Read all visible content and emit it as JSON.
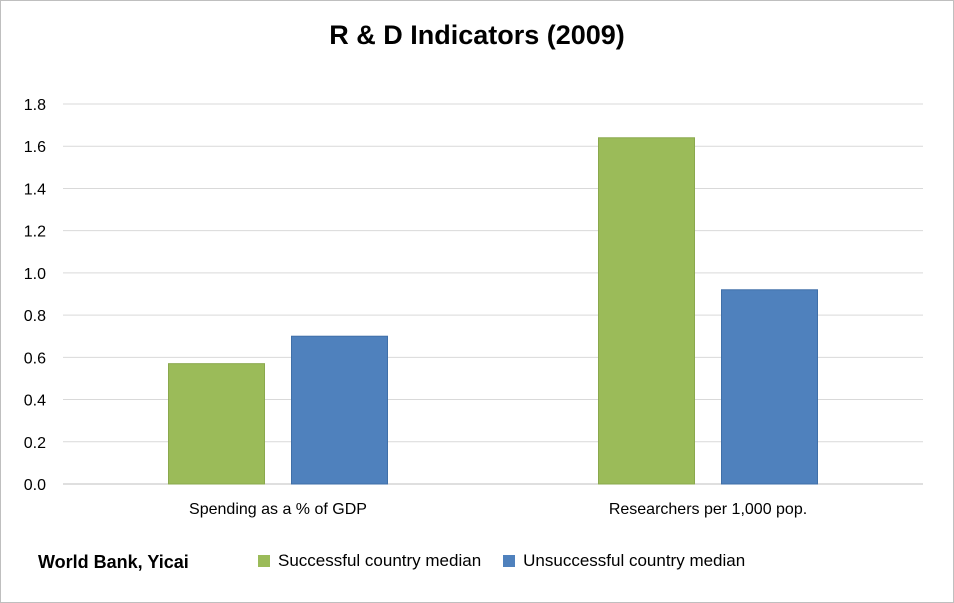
{
  "chart_data": {
    "type": "bar",
    "title": "R & D Indicators (2009)",
    "categories": [
      "Spending as a % of GDP",
      "Researchers per 1,000 pop."
    ],
    "series": [
      {
        "name": "Successful country median",
        "values": [
          0.57,
          1.64
        ],
        "color": "#9bbb59"
      },
      {
        "name": "Unsuccessful country median",
        "values": [
          0.7,
          0.92
        ],
        "color": "#4f81bd"
      }
    ],
    "ylim": [
      0,
      1.8
    ],
    "yticks": [
      "0.0",
      "0.2",
      "0.4",
      "0.6",
      "0.8",
      "1.0",
      "1.2",
      "1.4",
      "1.6",
      "1.8"
    ],
    "xlabel": "",
    "ylabel": "",
    "grid": true,
    "legend_position": "bottom"
  },
  "source": "World Bank, Yicai"
}
